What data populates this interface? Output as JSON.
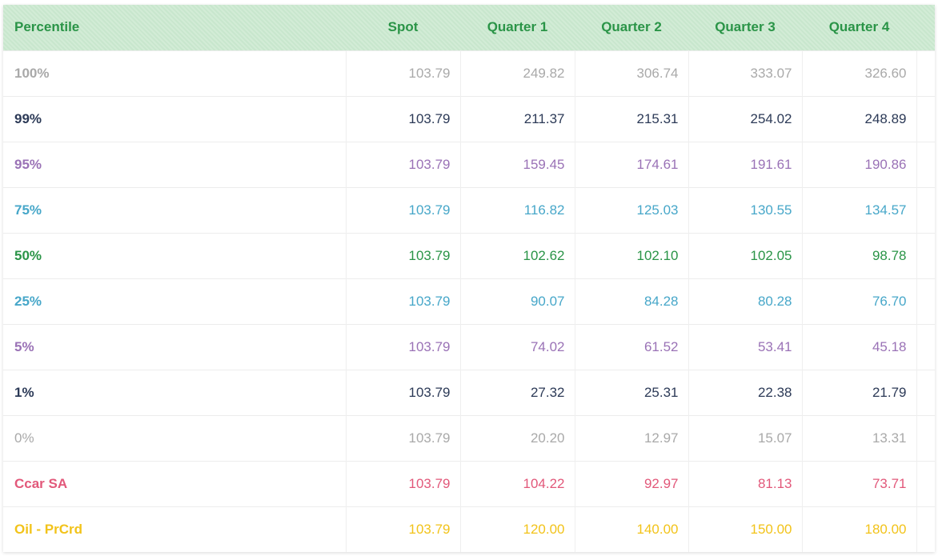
{
  "table": {
    "header": [
      "Percentile",
      "Spot",
      "Quarter 1",
      "Quarter 2",
      "Quarter 3",
      "Quarter 4"
    ],
    "rows": [
      {
        "label": "100%",
        "color": "#a9a9a9",
        "values": [
          "103.79",
          "249.82",
          "306.74",
          "333.07",
          "326.60"
        ]
      },
      {
        "label": "99%",
        "color": "#2c3a57",
        "values": [
          "103.79",
          "211.37",
          "215.31",
          "254.02",
          "248.89"
        ]
      },
      {
        "label": "95%",
        "color": "#9a72b6",
        "values": [
          "103.79",
          "159.45",
          "174.61",
          "191.61",
          "190.86"
        ]
      },
      {
        "label": "75%",
        "color": "#47a7c9",
        "values": [
          "103.79",
          "116.82",
          "125.03",
          "130.55",
          "134.57"
        ]
      },
      {
        "label": "50%",
        "color": "#2a9447",
        "values": [
          "103.79",
          "102.62",
          "102.10",
          "102.05",
          "98.78"
        ]
      },
      {
        "label": "25%",
        "color": "#47a7c9",
        "values": [
          "103.79",
          "90.07",
          "84.28",
          "80.28",
          "76.70"
        ]
      },
      {
        "label": "5%",
        "color": "#9a72b6",
        "values": [
          "103.79",
          "74.02",
          "61.52",
          "53.41",
          "45.18"
        ]
      },
      {
        "label": "1%",
        "color": "#2c3a57",
        "values": [
          "103.79",
          "27.32",
          "25.31",
          "22.38",
          "21.79"
        ]
      },
      {
        "label": "0%",
        "color": "#a9a9a9",
        "values": [
          "103.79",
          "20.20",
          "12.97",
          "15.07",
          "13.31"
        ]
      },
      {
        "label": "Ccar SA",
        "color": "#e2587a",
        "values": [
          "103.79",
          "104.22",
          "92.97",
          "81.13",
          "73.71"
        ]
      },
      {
        "label": "Oil - PrCrd",
        "color": "#f2c31a",
        "values": [
          "103.79",
          "120.00",
          "140.00",
          "150.00",
          "180.00"
        ]
      }
    ]
  }
}
